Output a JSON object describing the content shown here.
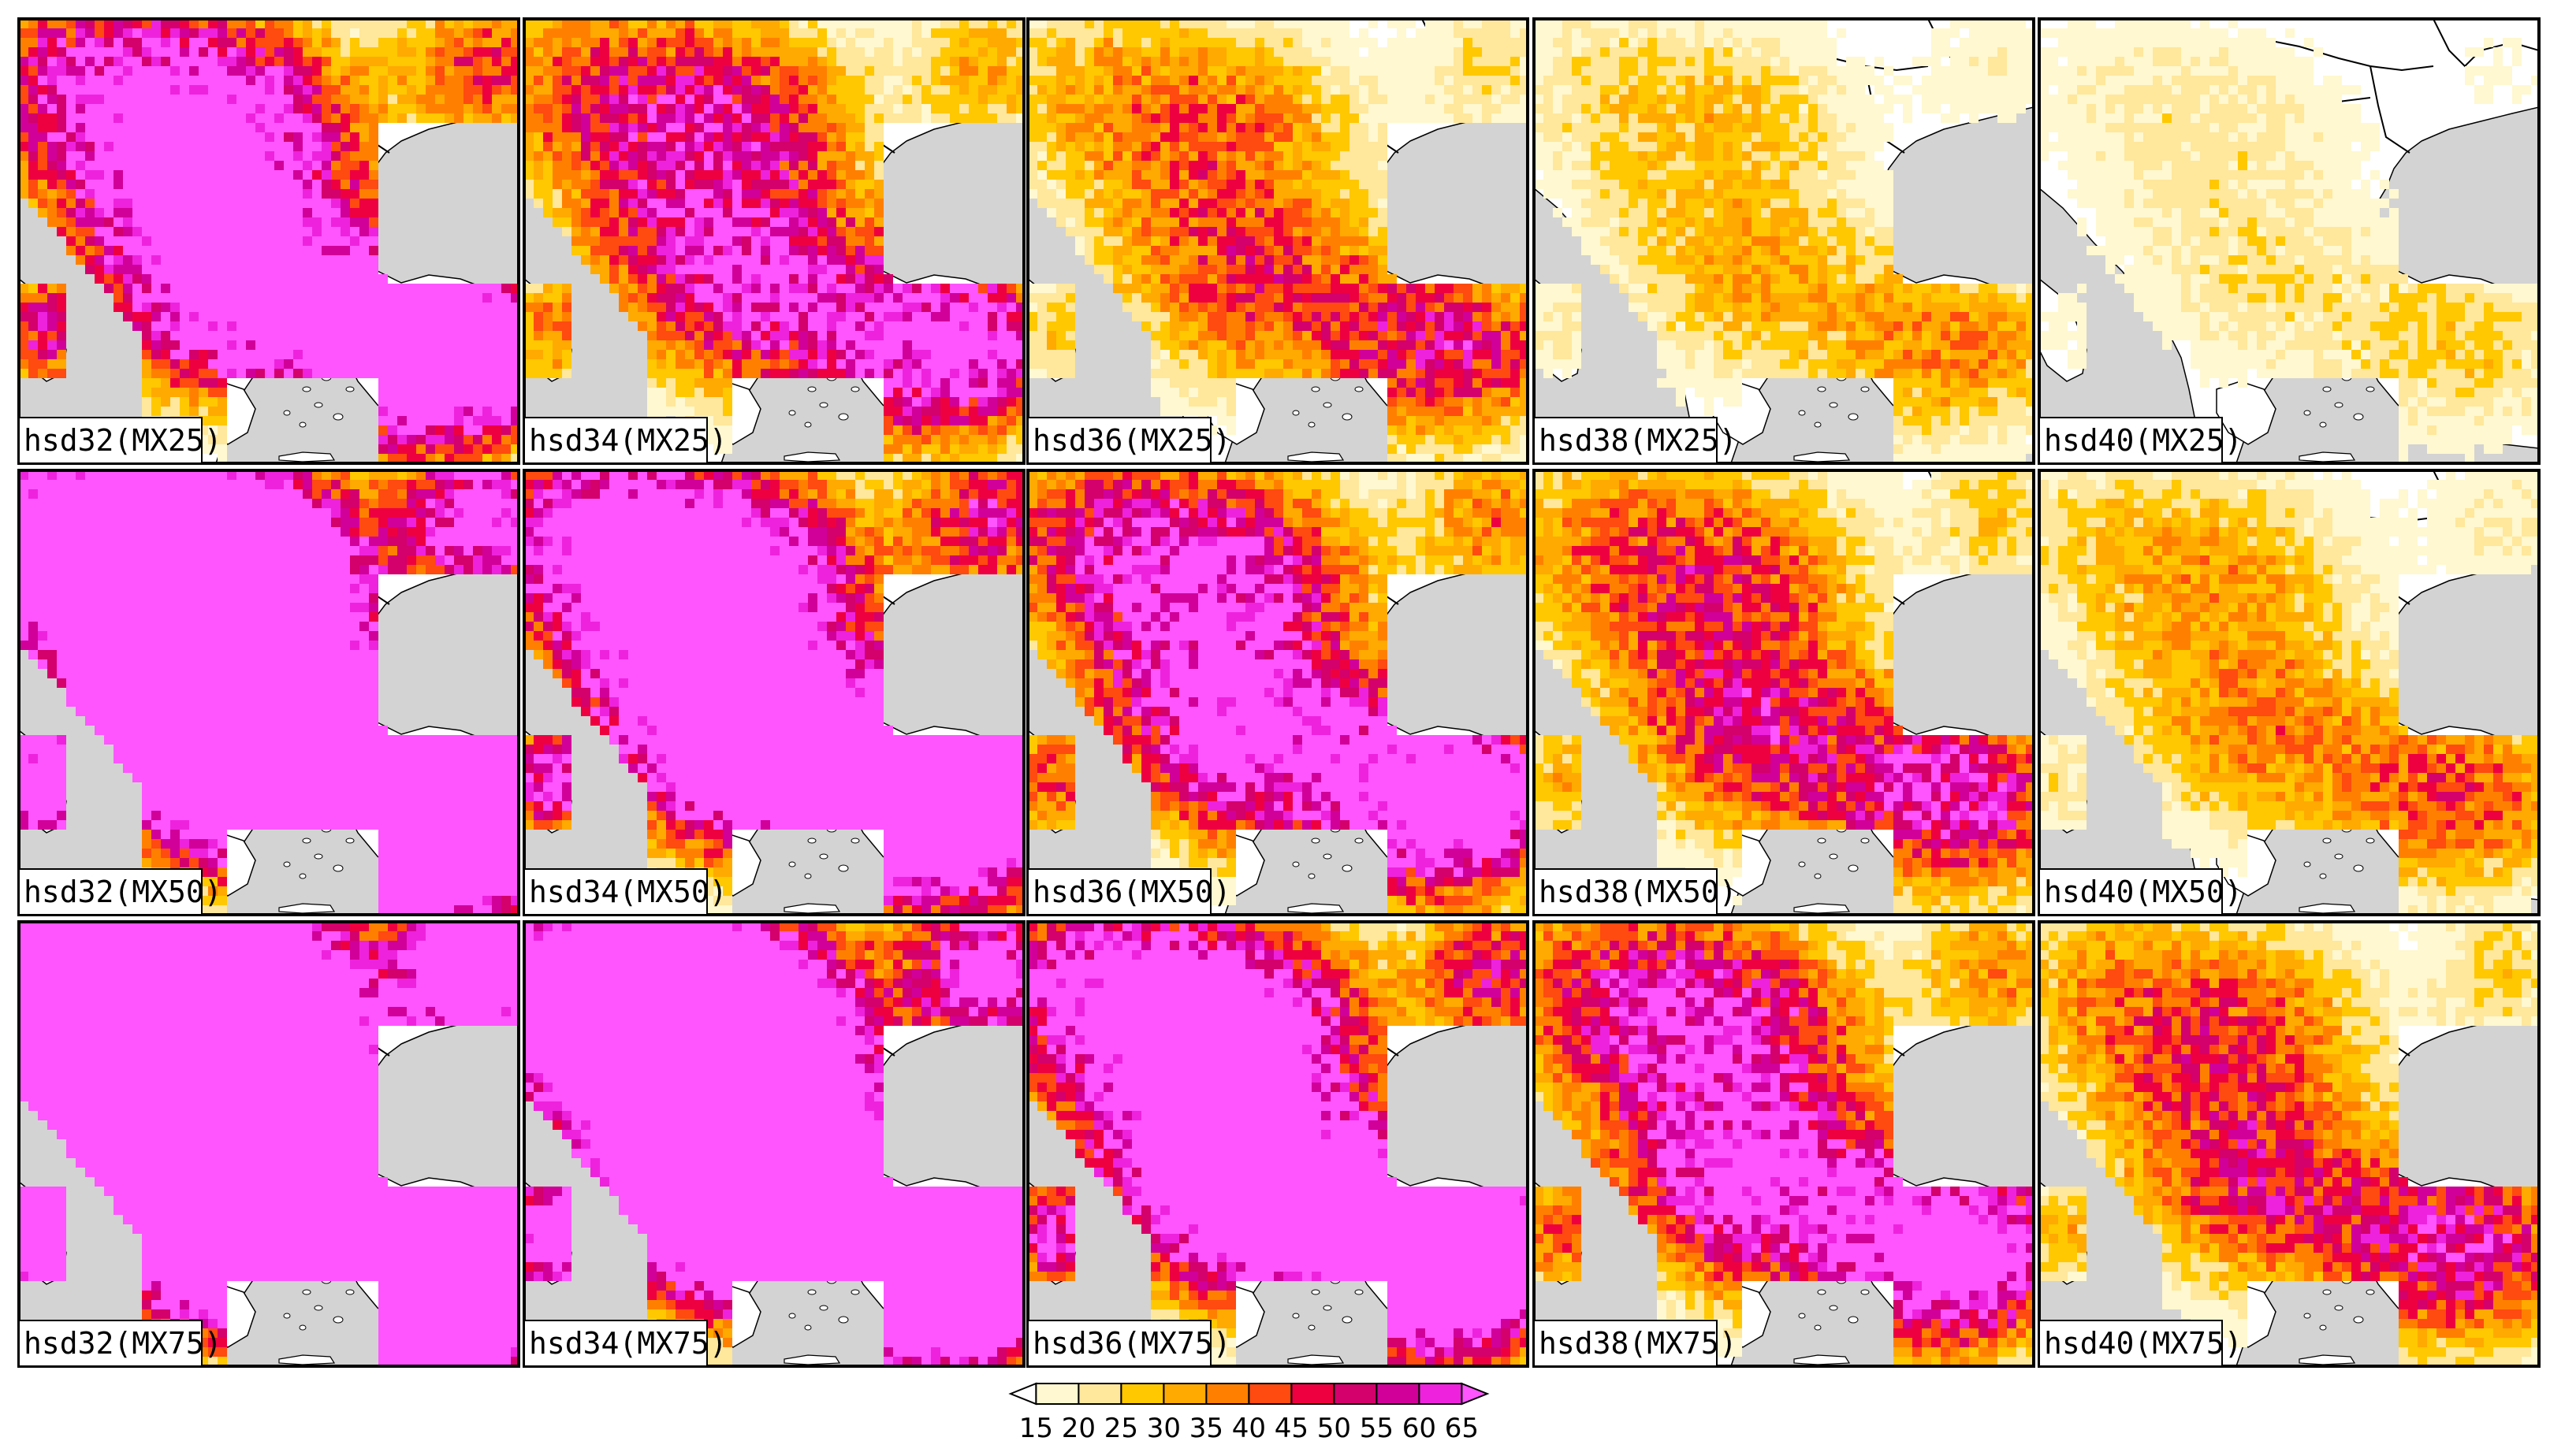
{
  "colors": {
    "land": "#ffffff",
    "sea": "#d3d3d3",
    "border": "#000000",
    "frame": "#000000"
  },
  "panels": [
    {
      "label": "hsd32(MX25)",
      "row": 0,
      "col": 0
    },
    {
      "label": "hsd34(MX25)",
      "row": 0,
      "col": 1
    },
    {
      "label": "hsd36(MX25)",
      "row": 0,
      "col": 2
    },
    {
      "label": "hsd38(MX25)",
      "row": 0,
      "col": 3
    },
    {
      "label": "hsd40(MX25)",
      "row": 0,
      "col": 4
    },
    {
      "label": "hsd32(MX50)",
      "row": 1,
      "col": 0
    },
    {
      "label": "hsd34(MX50)",
      "row": 1,
      "col": 1
    },
    {
      "label": "hsd36(MX50)",
      "row": 1,
      "col": 2
    },
    {
      "label": "hsd38(MX50)",
      "row": 1,
      "col": 3
    },
    {
      "label": "hsd40(MX50)",
      "row": 1,
      "col": 4
    },
    {
      "label": "hsd32(MX75)",
      "row": 2,
      "col": 0
    },
    {
      "label": "hsd34(MX75)",
      "row": 2,
      "col": 1
    },
    {
      "label": "hsd36(MX75)",
      "row": 2,
      "col": 2
    },
    {
      "label": "hsd38(MX75)",
      "row": 2,
      "col": 3
    },
    {
      "label": "hsd40(MX75)",
      "row": 2,
      "col": 4
    }
  ],
  "colorbar": {
    "labels": [
      "15",
      "20",
      "25",
      "30",
      "35",
      "40",
      "45",
      "50",
      "55",
      "60",
      "65"
    ],
    "colors": [
      "#ffffff",
      "#fff8d0",
      "#ffe79c",
      "#ffc800",
      "#ffaa00",
      "#ff8000",
      "#ff4a10",
      "#ee0040",
      "#d4006b",
      "#d10099",
      "#ee22dd",
      "#ff55ff"
    ]
  }
}
